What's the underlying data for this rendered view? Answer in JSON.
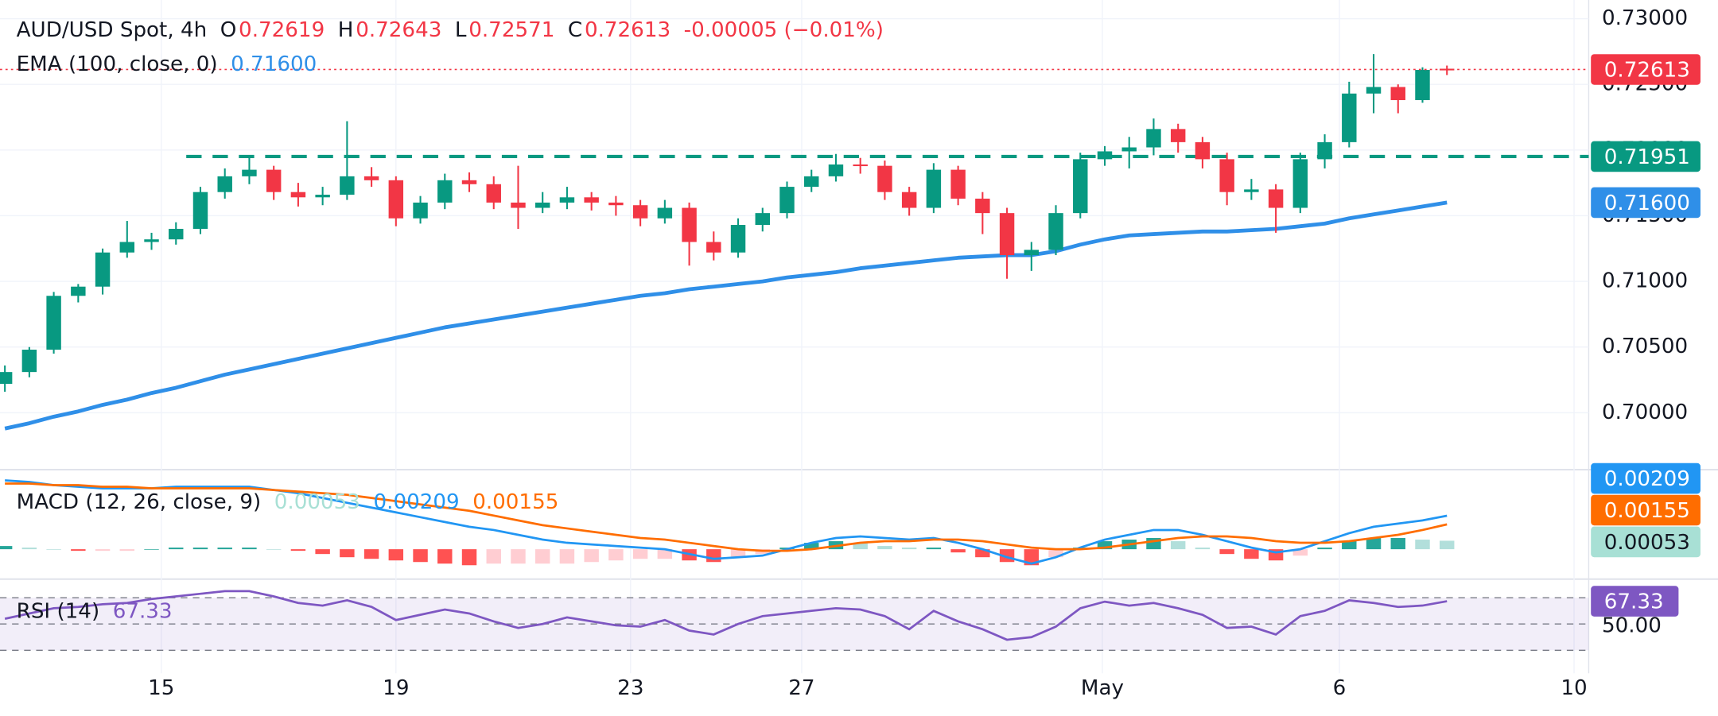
{
  "header": {
    "symbol": "AUD/USD Spot, 4h",
    "items": [
      {
        "key": "O",
        "value": "0.72619"
      },
      {
        "key": "H",
        "value": "0.72643"
      },
      {
        "key": "L",
        "value": "0.72571"
      },
      {
        "key": "C",
        "value": "0.72613"
      }
    ],
    "change": "-0.00005 (−0.01%)"
  },
  "chart_data": [
    {
      "type": "candlestick",
      "up_color": "#089981",
      "down_color": "#f23645",
      "last_label": "0.72613",
      "xlim": [
        -0.2,
        64.8
      ],
      "xticks": [
        {
          "value": 6.4,
          "label": "15"
        },
        {
          "value": 16.0,
          "label": "19"
        },
        {
          "value": 25.6,
          "label": "23"
        },
        {
          "value": 32.6,
          "label": "27"
        },
        {
          "value": 44.9,
          "label": "May"
        },
        {
          "value": 54.6,
          "label": "6"
        },
        {
          "value": 64.2,
          "label": "10"
        }
      ],
      "ylim": [
        0.69575,
        0.73142
      ],
      "yticks": [
        {
          "value": 0.7,
          "label": "0.70000"
        },
        {
          "value": 0.705,
          "label": "0.70500"
        },
        {
          "value": 0.71,
          "label": "0.71000"
        },
        {
          "value": 0.715,
          "label": "0.71500"
        },
        {
          "value": 0.72,
          "label": "0.72000"
        },
        {
          "value": 0.725,
          "label": "0.72500"
        },
        {
          "value": 0.73,
          "label": "0.73000"
        }
      ],
      "grid": true,
      "ohlc": [
        [
          0.7022,
          0.7036,
          0.7016,
          0.7031
        ],
        [
          0.7031,
          0.705,
          0.7027,
          0.7048
        ],
        [
          0.7048,
          0.7092,
          0.7045,
          0.7089
        ],
        [
          0.7089,
          0.7098,
          0.7084,
          0.7096
        ],
        [
          0.7096,
          0.7125,
          0.709,
          0.7122
        ],
        [
          0.7122,
          0.7146,
          0.7118,
          0.713
        ],
        [
          0.713,
          0.7137,
          0.7124,
          0.7132
        ],
        [
          0.7132,
          0.7145,
          0.7128,
          0.714
        ],
        [
          0.714,
          0.7172,
          0.7136,
          0.7168
        ],
        [
          0.7168,
          0.7186,
          0.7163,
          0.718
        ],
        [
          0.718,
          0.7196,
          0.7174,
          0.7185
        ],
        [
          0.7185,
          0.7188,
          0.7162,
          0.7168
        ],
        [
          0.7168,
          0.7175,
          0.7157,
          0.7164
        ],
        [
          0.7164,
          0.7172,
          0.7158,
          0.7166
        ],
        [
          0.7166,
          0.7222,
          0.7162,
          0.718
        ],
        [
          0.718,
          0.7187,
          0.7172,
          0.7177
        ],
        [
          0.7177,
          0.718,
          0.7142,
          0.7148
        ],
        [
          0.7148,
          0.7165,
          0.7144,
          0.716
        ],
        [
          0.716,
          0.7182,
          0.7155,
          0.7177
        ],
        [
          0.7177,
          0.7183,
          0.7168,
          0.7174
        ],
        [
          0.7174,
          0.718,
          0.7155,
          0.716
        ],
        [
          0.716,
          0.7188,
          0.714,
          0.7156
        ],
        [
          0.7156,
          0.7168,
          0.7152,
          0.716
        ],
        [
          0.716,
          0.7172,
          0.7155,
          0.7164
        ],
        [
          0.7164,
          0.7168,
          0.7154,
          0.716
        ],
        [
          0.716,
          0.7165,
          0.715,
          0.7158
        ],
        [
          0.7158,
          0.7162,
          0.7142,
          0.7148
        ],
        [
          0.7148,
          0.7162,
          0.7144,
          0.7156
        ],
        [
          0.7156,
          0.716,
          0.7112,
          0.713
        ],
        [
          0.713,
          0.7138,
          0.7116,
          0.7122
        ],
        [
          0.7122,
          0.7148,
          0.7118,
          0.7143
        ],
        [
          0.7143,
          0.7156,
          0.7138,
          0.7152
        ],
        [
          0.7152,
          0.7176,
          0.7148,
          0.7172
        ],
        [
          0.7172,
          0.7185,
          0.7168,
          0.718
        ],
        [
          0.718,
          0.7197,
          0.7176,
          0.7189
        ],
        [
          0.7189,
          0.7194,
          0.7182,
          0.7188
        ],
        [
          0.7188,
          0.7192,
          0.7162,
          0.7168
        ],
        [
          0.7168,
          0.7172,
          0.715,
          0.7156
        ],
        [
          0.7156,
          0.719,
          0.7152,
          0.7185
        ],
        [
          0.7185,
          0.7188,
          0.7158,
          0.7163
        ],
        [
          0.7163,
          0.7168,
          0.7136,
          0.7152
        ],
        [
          0.7152,
          0.7156,
          0.7102,
          0.712
        ],
        [
          0.712,
          0.713,
          0.7108,
          0.7124
        ],
        [
          0.7124,
          0.7158,
          0.712,
          0.7152
        ],
        [
          0.7152,
          0.7198,
          0.7148,
          0.7193
        ],
        [
          0.7193,
          0.7203,
          0.7188,
          0.7199
        ],
        [
          0.7199,
          0.721,
          0.7186,
          0.7202
        ],
        [
          0.7202,
          0.7224,
          0.7196,
          0.7216
        ],
        [
          0.7216,
          0.722,
          0.7198,
          0.7206
        ],
        [
          0.7206,
          0.721,
          0.7186,
          0.7193
        ],
        [
          0.7193,
          0.7198,
          0.7158,
          0.7168
        ],
        [
          0.7168,
          0.7178,
          0.7162,
          0.717
        ],
        [
          0.717,
          0.7174,
          0.7137,
          0.7156
        ],
        [
          0.7156,
          0.7198,
          0.7152,
          0.7193
        ],
        [
          0.7193,
          0.7212,
          0.7186,
          0.7206
        ],
        [
          0.7206,
          0.7252,
          0.7202,
          0.7243
        ],
        [
          0.7243,
          0.7273,
          0.7228,
          0.7248
        ],
        [
          0.7248,
          0.725,
          0.7228,
          0.7238
        ],
        [
          0.7238,
          0.7263,
          0.7236,
          0.7261
        ],
        [
          0.72619,
          0.72643,
          0.72571,
          0.72613
        ]
      ],
      "series": [
        {
          "name": "EMA (100, close, 0)",
          "color": "#2f8fe8",
          "value_label": "0.71600",
          "values": [
            0.6988,
            0.6992,
            0.6997,
            0.7001,
            0.7006,
            0.701,
            0.7015,
            0.7019,
            0.7024,
            0.7029,
            0.7033,
            0.7037,
            0.7041,
            0.7045,
            0.7049,
            0.7053,
            0.7057,
            0.7061,
            0.7065,
            0.7068,
            0.7071,
            0.7074,
            0.7077,
            0.708,
            0.7083,
            0.7086,
            0.7089,
            0.7091,
            0.7094,
            0.7096,
            0.7098,
            0.71,
            0.7103,
            0.7105,
            0.7107,
            0.711,
            0.7112,
            0.7114,
            0.7116,
            0.7118,
            0.7119,
            0.712,
            0.712,
            0.7123,
            0.7128,
            0.7132,
            0.7135,
            0.7136,
            0.7137,
            0.7138,
            0.7138,
            0.7139,
            0.714,
            0.7142,
            0.7144,
            0.7148,
            0.7151,
            0.7154,
            0.7157,
            0.716
          ]
        }
      ],
      "level": {
        "value": 0.71951,
        "color": "#089981"
      }
    },
    {
      "type": "macd",
      "title": "MACD (12, 26, close, 9)",
      "ylim": [
        -0.0018,
        0.0049
      ],
      "histogram": {
        "colors": [
          "#26a69a",
          "#b2dfdb",
          "#ff5252",
          "#ffcdd2"
        ],
        "value_label": "0.00053",
        "label_color": "#a8e0d5",
        "values": [
          0.0002,
          0.0001,
          0,
          -0.0001,
          -0.0001,
          -0.0001,
          0,
          0.0001,
          0.0001,
          0.0001,
          0.0001,
          0,
          -0.0001,
          -0.0003,
          -0.0005,
          -0.0006,
          -0.0007,
          -0.0008,
          -0.0009,
          -0.001,
          -0.0009,
          -0.0009,
          -0.0009,
          -0.0009,
          -0.0008,
          -0.0007,
          -0.0006,
          -0.0006,
          -0.0007,
          -0.0008,
          -0.0005,
          -0.0003,
          0.0001,
          0.0004,
          0.0005,
          0.0004,
          0.0002,
          0.0001,
          0.0001,
          -0.0002,
          -0.0005,
          -0.0008,
          -0.001,
          -0.0005,
          0.0001,
          0.0005,
          0.0006,
          0.0007,
          0.0005,
          0.0001,
          -0.0003,
          -0.0006,
          -0.0007,
          -0.0004,
          0.0001,
          0.0005,
          0.0007,
          0.0007,
          0.0006,
          0.00053
        ]
      },
      "macd": {
        "color": "#2196f3",
        "value_label": "0.00209",
        "values": [
          0.0043,
          0.0042,
          0.004,
          0.0039,
          0.0038,
          0.0038,
          0.0038,
          0.0039,
          0.0039,
          0.0039,
          0.0039,
          0.0037,
          0.0035,
          0.0032,
          0.0029,
          0.0026,
          0.0023,
          0.002,
          0.0017,
          0.0014,
          0.0012,
          0.0009,
          0.0006,
          0.0004,
          0.0003,
          0.0002,
          0.0001,
          0,
          -0.0003,
          -0.0006,
          -0.0005,
          -0.0004,
          0,
          0.0004,
          0.0007,
          0.0008,
          0.0007,
          0.0006,
          0.0007,
          0.0004,
          0,
          -0.0005,
          -0.0009,
          -0.0005,
          0.0001,
          0.0006,
          0.0009,
          0.0012,
          0.0012,
          0.0009,
          0.0005,
          0.0001,
          -0.0002,
          0,
          0.0005,
          0.001,
          0.0014,
          0.0016,
          0.0018,
          0.00209
        ]
      },
      "signal": {
        "color": "#ff6d00",
        "value_label": "0.00155",
        "values": [
          0.0041,
          0.0041,
          0.004,
          0.004,
          0.0039,
          0.0039,
          0.0038,
          0.0038,
          0.0038,
          0.0038,
          0.0038,
          0.0037,
          0.0036,
          0.0035,
          0.0034,
          0.0032,
          0.003,
          0.0028,
          0.0026,
          0.0024,
          0.0021,
          0.0018,
          0.0015,
          0.0013,
          0.0011,
          0.0009,
          0.0007,
          0.0006,
          0.0004,
          0.0002,
          0,
          -0.0001,
          -0.0001,
          0,
          0.0002,
          0.0004,
          0.0005,
          0.0005,
          0.0006,
          0.0006,
          0.0005,
          0.0003,
          0.0001,
          0,
          0,
          0.0001,
          0.0003,
          0.0005,
          0.0007,
          0.0008,
          0.0008,
          0.0007,
          0.0005,
          0.0004,
          0.0004,
          0.0005,
          0.0007,
          0.0009,
          0.0012,
          0.00155
        ]
      }
    },
    {
      "type": "rsi",
      "title": "RSI (14)",
      "color": "#7e57c2",
      "value_label": "67.33",
      "ylim": [
        12.5,
        83.3
      ],
      "yticks": [
        {
          "value": 50,
          "label": "50.00"
        }
      ],
      "bands": [
        30,
        70
      ],
      "values": [
        54,
        58,
        62,
        63,
        65,
        66,
        69,
        71,
        73,
        75,
        75,
        71,
        66,
        64,
        68,
        63,
        53,
        57,
        61,
        58,
        52,
        47,
        50,
        55,
        52,
        49,
        48,
        53,
        45,
        42,
        50,
        56,
        58,
        60,
        62,
        61,
        56,
        46,
        60,
        52,
        46,
        38,
        40,
        48,
        62,
        67,
        64,
        66,
        62,
        57,
        47,
        48,
        42,
        56,
        60,
        68,
        66,
        63,
        64,
        67.33
      ]
    }
  ]
}
